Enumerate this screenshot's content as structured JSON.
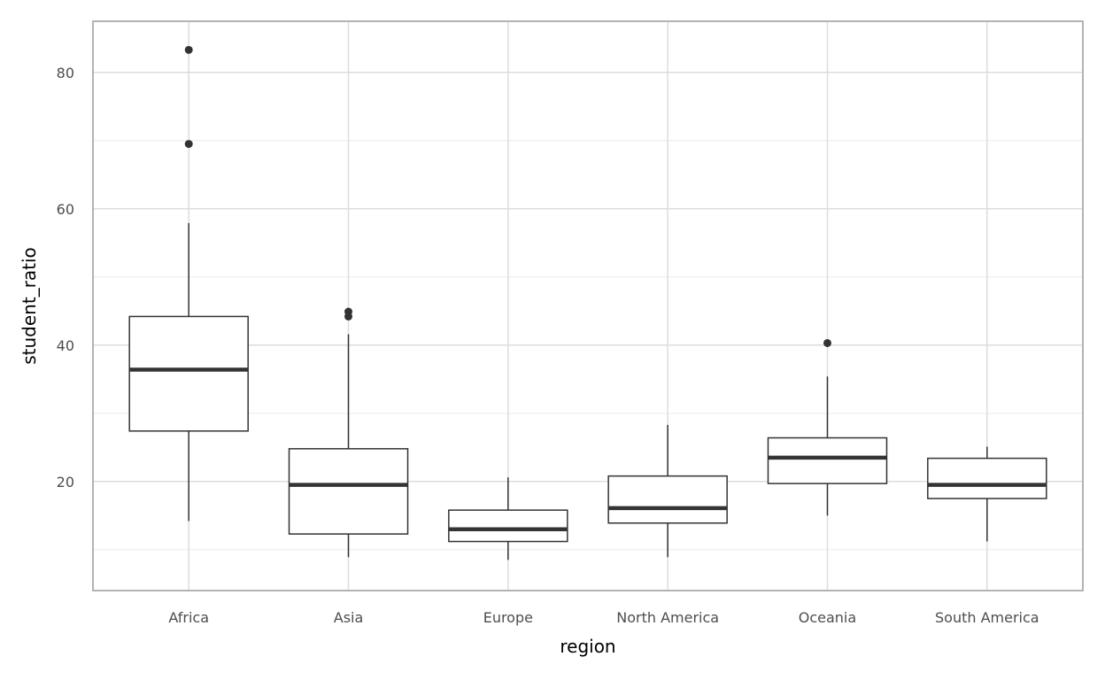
{
  "chart_data": {
    "type": "boxplot",
    "xlabel": "region",
    "ylabel": "student_ratio",
    "ylim": [
      4.0,
      87.5
    ],
    "y_ticks": [
      20,
      40,
      60,
      80
    ],
    "y_minor_ticks": [
      10,
      30,
      50,
      70
    ],
    "grid": true,
    "categories": [
      "Africa",
      "Asia",
      "Europe",
      "North America",
      "Oceania",
      "South America"
    ],
    "boxes": [
      {
        "category": "Africa",
        "whisker_low": 14.2,
        "q1": 27.4,
        "median": 36.4,
        "q3": 44.2,
        "whisker_high": 57.9,
        "outliers": [
          69.5,
          83.3
        ]
      },
      {
        "category": "Asia",
        "whisker_low": 8.9,
        "q1": 12.3,
        "median": 19.5,
        "q3": 24.8,
        "whisker_high": 41.6,
        "outliers": [
          44.2,
          44.9
        ]
      },
      {
        "category": "Europe",
        "whisker_low": 8.5,
        "q1": 11.2,
        "median": 13.0,
        "q3": 15.8,
        "whisker_high": 20.6,
        "outliers": []
      },
      {
        "category": "North America",
        "whisker_low": 8.9,
        "q1": 13.9,
        "median": 16.1,
        "q3": 20.8,
        "whisker_high": 28.3,
        "outliers": []
      },
      {
        "category": "Oceania",
        "whisker_low": 15.0,
        "q1": 19.7,
        "median": 23.5,
        "q3": 26.4,
        "whisker_high": 35.4,
        "outliers": [
          40.3
        ]
      },
      {
        "category": "South America",
        "whisker_low": 11.2,
        "q1": 17.5,
        "median": 19.5,
        "q3": 23.4,
        "whisker_high": 25.1,
        "outliers": []
      }
    ],
    "colors": {
      "box_stroke": "#333333",
      "box_fill": "#ffffff",
      "grid_major": "#dddddd",
      "grid_minor": "#ebebeb",
      "panel_border": "#b3b3b3",
      "tick_text": "#4d4d4d",
      "title_text": "#000000"
    }
  }
}
